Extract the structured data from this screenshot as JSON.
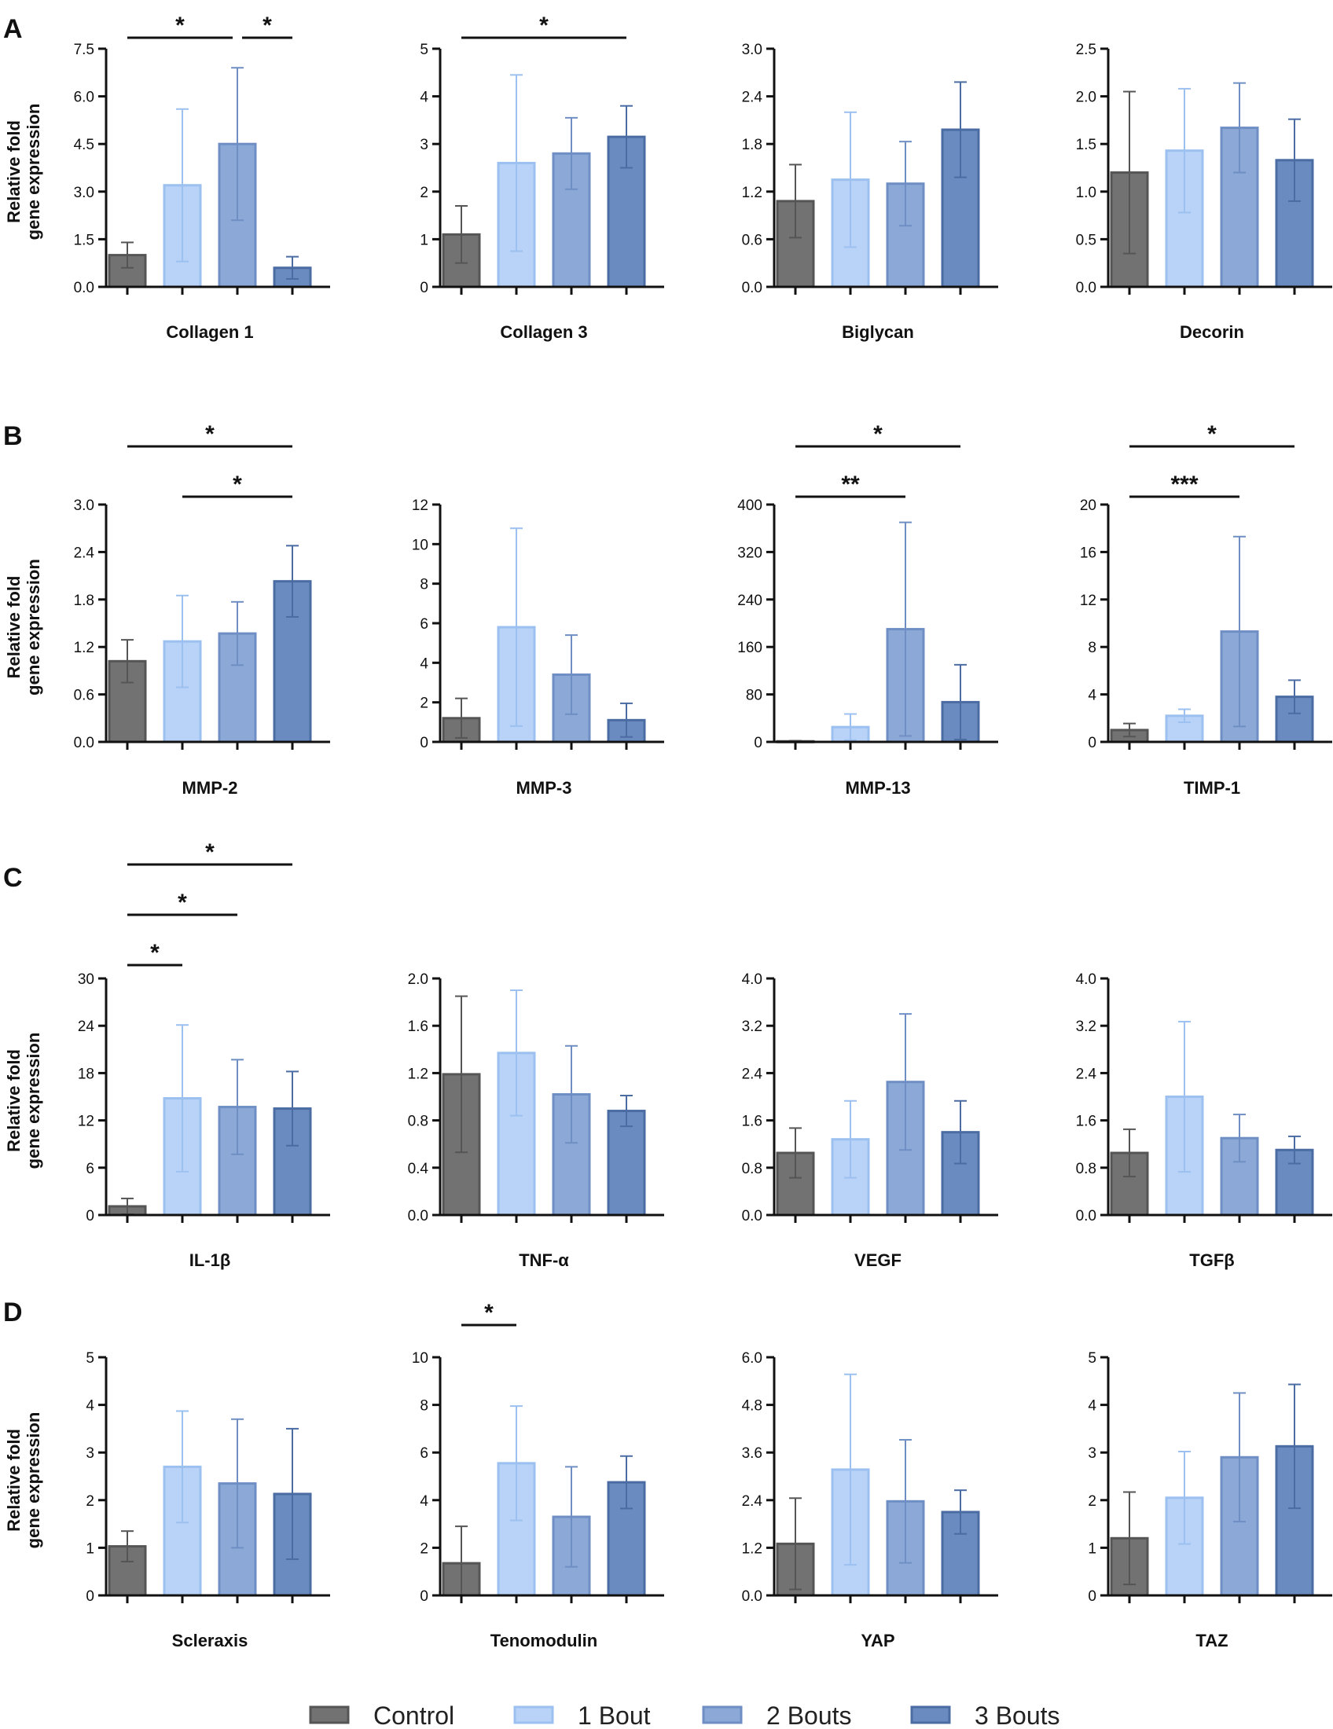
{
  "legend": [
    {
      "label": "Control",
      "color": "#727272",
      "stroke": "#555555"
    },
    {
      "label": "1 Bout",
      "color": "#b8d3f7",
      "stroke": "#9cc0ef"
    },
    {
      "label": "2 Bouts",
      "color": "#8ba8d6",
      "stroke": "#6f8fc4"
    },
    {
      "label": "3 Bouts",
      "color": "#6a8bbf",
      "stroke": "#4a6ca3"
    }
  ],
  "chart_data": [
    {
      "panel": "A",
      "type": "bar",
      "title": "Collagen 1",
      "ylabel": "Relative fold gene expression",
      "ylim": [
        0,
        7.5
      ],
      "yticks": [
        "0.0",
        "1.5",
        "3.0",
        "4.5",
        "6.0",
        "7.5"
      ],
      "categories": [
        "Control",
        "1 Bout",
        "2 Bouts",
        "3 Bouts"
      ],
      "values": [
        1.0,
        3.2,
        4.5,
        0.6
      ],
      "errors": [
        0.4,
        2.4,
        2.4,
        0.35
      ],
      "significance": [
        {
          "from": 0,
          "to": 2,
          "label": "*",
          "level": 1
        },
        {
          "from": 2,
          "to": 3,
          "label": "*",
          "level": 1
        }
      ]
    },
    {
      "panel": "A",
      "type": "bar",
      "title": "Collagen 3",
      "ylim": [
        0,
        5
      ],
      "yticks": [
        "0",
        "1",
        "2",
        "3",
        "4",
        "5"
      ],
      "categories": [
        "Control",
        "1 Bout",
        "2 Bouts",
        "3 Bouts"
      ],
      "values": [
        1.1,
        2.6,
        2.8,
        3.15
      ],
      "errors": [
        0.6,
        1.85,
        0.75,
        0.65
      ],
      "significance": [
        {
          "from": 0,
          "to": 3,
          "label": "*",
          "level": 1
        }
      ]
    },
    {
      "panel": "A",
      "type": "bar",
      "title": "Biglycan",
      "ylim": [
        0,
        3
      ],
      "yticks": [
        "0.0",
        "0.6",
        "1.2",
        "1.8",
        "2.4",
        "3.0"
      ],
      "categories": [
        "Control",
        "1 Bout",
        "2 Bouts",
        "3 Bouts"
      ],
      "values": [
        1.08,
        1.35,
        1.3,
        1.98
      ],
      "errors": [
        0.46,
        0.85,
        0.53,
        0.6
      ],
      "significance": []
    },
    {
      "panel": "A",
      "type": "bar",
      "title": "Decorin",
      "ylim": [
        0,
        2.5
      ],
      "yticks": [
        "0.0",
        "0.5",
        "1.0",
        "1.5",
        "2.0",
        "2.5"
      ],
      "categories": [
        "Control",
        "1 Bout",
        "2 Bouts",
        "3 Bouts"
      ],
      "values": [
        1.2,
        1.43,
        1.67,
        1.33
      ],
      "errors": [
        0.85,
        0.65,
        0.47,
        0.43
      ],
      "significance": []
    },
    {
      "panel": "B",
      "type": "bar",
      "title": "MMP-2",
      "ylabel": "Relative fold gene expression",
      "ylim": [
        0,
        3
      ],
      "yticks": [
        "0.0",
        "0.6",
        "1.2",
        "1.8",
        "2.4",
        "3.0"
      ],
      "categories": [
        "Control",
        "1 Bout",
        "2 Bouts",
        "3 Bouts"
      ],
      "values": [
        1.02,
        1.27,
        1.37,
        2.03
      ],
      "errors": [
        0.27,
        0.58,
        0.4,
        0.45
      ],
      "significance": [
        {
          "from": 1,
          "to": 3,
          "label": "*",
          "level": 1
        },
        {
          "from": 0,
          "to": 3,
          "label": "*",
          "level": 2
        }
      ]
    },
    {
      "panel": "B",
      "type": "bar",
      "title": "MMP-3",
      "ylim": [
        0,
        12
      ],
      "yticks": [
        "0",
        "2",
        "4",
        "6",
        "8",
        "10",
        "12"
      ],
      "categories": [
        "Control",
        "1 Bout",
        "2 Bouts",
        "3 Bouts"
      ],
      "values": [
        1.2,
        5.8,
        3.4,
        1.1
      ],
      "errors": [
        1.0,
        5.0,
        2.0,
        0.85
      ],
      "significance": []
    },
    {
      "panel": "B",
      "type": "bar",
      "title": "MMP-13",
      "ylim": [
        0,
        400
      ],
      "yticks": [
        "0",
        "80",
        "160",
        "240",
        "320",
        "400"
      ],
      "categories": [
        "Control",
        "1 Bout",
        "2 Bouts",
        "3 Bouts"
      ],
      "values": [
        1,
        25,
        190,
        67
      ],
      "errors": [
        1,
        22,
        180,
        63
      ],
      "significance": [
        {
          "from": 0,
          "to": 2,
          "label": "**",
          "level": 1
        },
        {
          "from": 0,
          "to": 3,
          "label": "*",
          "level": 2
        }
      ]
    },
    {
      "panel": "B",
      "type": "bar",
      "title": "TIMP-1",
      "ylim": [
        0,
        20
      ],
      "yticks": [
        "0",
        "4",
        "8",
        "12",
        "16",
        "20"
      ],
      "categories": [
        "Control",
        "1 Bout",
        "2 Bouts",
        "3 Bouts"
      ],
      "values": [
        1.0,
        2.2,
        9.3,
        3.8
      ],
      "errors": [
        0.55,
        0.55,
        8.0,
        1.4
      ],
      "significance": [
        {
          "from": 0,
          "to": 2,
          "label": "***",
          "level": 1
        },
        {
          "from": 0,
          "to": 3,
          "label": "*",
          "level": 2
        }
      ]
    },
    {
      "panel": "C",
      "type": "bar",
      "title": "IL-1β",
      "ylabel": "Relative fold gene expression",
      "ylim": [
        0,
        30
      ],
      "yticks": [
        "0",
        "6",
        "12",
        "18",
        "24",
        "30"
      ],
      "categories": [
        "Control",
        "1 Bout",
        "2 Bouts",
        "3 Bouts"
      ],
      "values": [
        1.1,
        14.8,
        13.7,
        13.5
      ],
      "errors": [
        1.0,
        9.3,
        6.0,
        4.7
      ],
      "significance": [
        {
          "from": 0,
          "to": 1,
          "label": "*",
          "level": 1
        },
        {
          "from": 0,
          "to": 2,
          "label": "*",
          "level": 2
        },
        {
          "from": 0,
          "to": 3,
          "label": "*",
          "level": 3
        }
      ]
    },
    {
      "panel": "C",
      "type": "bar",
      "title": "TNF-α",
      "ylim": [
        0,
        2
      ],
      "yticks": [
        "0.0",
        "0.4",
        "0.8",
        "1.2",
        "1.6",
        "2.0"
      ],
      "categories": [
        "Control",
        "1 Bout",
        "2 Bouts",
        "3 Bouts"
      ],
      "values": [
        1.19,
        1.37,
        1.02,
        0.88
      ],
      "errors": [
        0.66,
        0.53,
        0.41,
        0.13
      ],
      "significance": []
    },
    {
      "panel": "C",
      "type": "bar",
      "title": "VEGF",
      "ylim": [
        0,
        4
      ],
      "yticks": [
        "0.0",
        "0.8",
        "1.6",
        "2.4",
        "3.2",
        "4.0"
      ],
      "categories": [
        "Control",
        "1 Bout",
        "2 Bouts",
        "3 Bouts"
      ],
      "values": [
        1.05,
        1.28,
        2.25,
        1.4
      ],
      "errors": [
        0.42,
        0.65,
        1.15,
        0.53
      ],
      "significance": []
    },
    {
      "panel": "C",
      "type": "bar",
      "title": "TGFβ",
      "ylim": [
        0,
        4
      ],
      "yticks": [
        "0.0",
        "0.8",
        "1.6",
        "2.4",
        "3.2",
        "4.0"
      ],
      "categories": [
        "Control",
        "1 Bout",
        "2 Bouts",
        "3 Bouts"
      ],
      "values": [
        1.05,
        2.0,
        1.3,
        1.1
      ],
      "errors": [
        0.4,
        1.27,
        0.4,
        0.23
      ],
      "significance": []
    },
    {
      "panel": "D",
      "type": "bar",
      "title": "Scleraxis",
      "ylabel": "Relative fold gene expression",
      "ylim": [
        0,
        5
      ],
      "yticks": [
        "0",
        "1",
        "2",
        "3",
        "4",
        "5"
      ],
      "categories": [
        "Control",
        "1 Bout",
        "2 Bouts",
        "3 Bouts"
      ],
      "values": [
        1.03,
        2.7,
        2.35,
        2.13
      ],
      "errors": [
        0.32,
        1.17,
        1.35,
        1.37
      ],
      "significance": []
    },
    {
      "panel": "D",
      "type": "bar",
      "title": "Tenomodulin",
      "ylim": [
        0,
        10
      ],
      "yticks": [
        "0",
        "2",
        "4",
        "6",
        "8",
        "10"
      ],
      "categories": [
        "Control",
        "1 Bout",
        "2 Bouts",
        "3 Bouts"
      ],
      "values": [
        1.35,
        5.55,
        3.3,
        4.75
      ],
      "errors": [
        1.55,
        2.4,
        2.1,
        1.1
      ],
      "significance": [
        {
          "from": 0,
          "to": 1,
          "label": "*",
          "level": 1
        }
      ]
    },
    {
      "panel": "D",
      "type": "bar",
      "title": "YAP",
      "ylim": [
        0,
        6
      ],
      "yticks": [
        "0.0",
        "1.2",
        "2.4",
        "3.6",
        "4.8",
        "6.0"
      ],
      "categories": [
        "Control",
        "1 Bout",
        "2 Bouts",
        "3 Bouts"
      ],
      "values": [
        1.3,
        3.17,
        2.37,
        2.1
      ],
      "errors": [
        1.15,
        2.4,
        1.55,
        0.55
      ],
      "significance": []
    },
    {
      "panel": "D",
      "type": "bar",
      "title": "TAZ",
      "ylim": [
        0,
        5
      ],
      "yticks": [
        "0",
        "1",
        "2",
        "3",
        "4",
        "5"
      ],
      "categories": [
        "Control",
        "1 Bout",
        "2 Bouts",
        "3 Bouts"
      ],
      "values": [
        1.2,
        2.05,
        2.9,
        3.13
      ],
      "errors": [
        0.97,
        0.97,
        1.35,
        1.3
      ],
      "significance": []
    }
  ]
}
